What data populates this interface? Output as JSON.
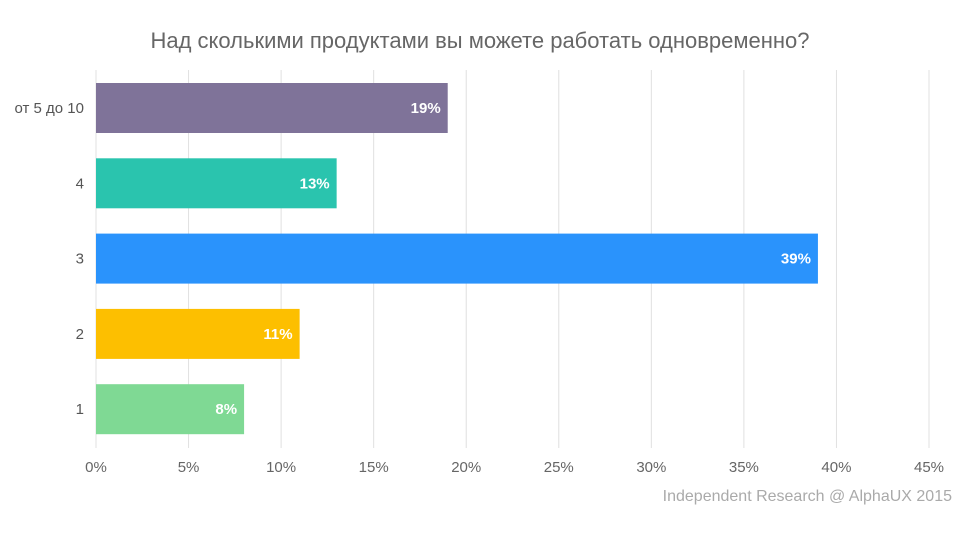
{
  "chart_data": {
    "type": "bar",
    "orientation": "horizontal",
    "title": "Над сколькими продуктами вы можете работать одновременно?",
    "categories": [
      "от 5 до 10",
      "4",
      "3",
      "2",
      "1"
    ],
    "values": [
      19,
      13,
      39,
      11,
      8
    ],
    "data_labels": [
      "19%",
      "13%",
      "39%",
      "11%",
      "8%"
    ],
    "colors": [
      "#7f7399",
      "#2ac4ae",
      "#2a93fc",
      "#fdbf00",
      "#7fd994"
    ],
    "xlim": [
      0,
      45
    ],
    "x_ticks": [
      "0%",
      "5%",
      "10%",
      "15%",
      "20%",
      "25%",
      "30%",
      "35%",
      "40%",
      "45%"
    ],
    "xlabel": "",
    "ylabel": "",
    "grid": "vertical",
    "legend": "none"
  },
  "footer": "Independent  Research @ AlphaUX 2015"
}
